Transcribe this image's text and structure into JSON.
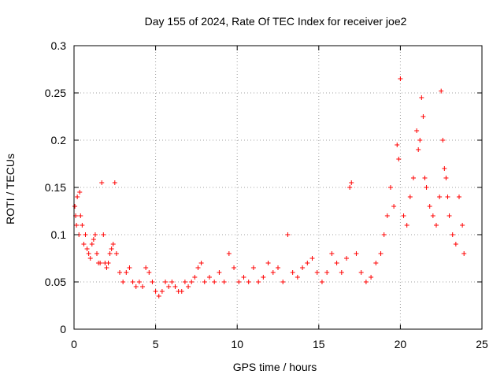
{
  "chart_data": {
    "type": "scatter",
    "title": "Day 155 of 2024, Rate Of TEC Index for receiver joe2",
    "xlabel": "GPS time / hours",
    "ylabel": "ROTI / TECUs",
    "xlim": [
      0,
      25
    ],
    "ylim": [
      0,
      0.3
    ],
    "xticks": [
      0,
      5,
      10,
      15,
      20,
      25
    ],
    "xtick_labels": [
      "0",
      "5",
      "10",
      "15",
      "20",
      "25"
    ],
    "yticks": [
      0,
      0.05,
      0.1,
      0.15,
      0.2,
      0.25,
      0.3
    ],
    "ytick_labels": [
      "0",
      "0.05",
      "0.1",
      "0.15",
      "0.2",
      "0.25",
      "0.3"
    ],
    "grid": true,
    "marker": "+",
    "marker_color": "#ff0000",
    "series": [
      {
        "x": [
          0.05,
          0.1,
          0.15,
          0.2,
          0.3,
          0.35,
          0.4,
          0.5,
          0.6,
          0.7,
          0.8,
          0.9,
          1.0,
          1.1,
          1.2,
          1.3,
          1.4,
          1.5,
          1.6,
          1.7,
          1.8,
          1.9,
          2.0,
          2.1,
          2.2,
          2.3,
          2.4,
          2.5,
          2.6,
          2.8,
          3.0,
          3.2,
          3.4,
          3.6,
          3.8,
          4.0,
          4.2,
          4.4,
          4.6,
          4.8,
          5.0,
          5.2,
          5.4,
          5.6,
          5.8,
          6.0,
          6.2,
          6.4,
          6.6,
          6.8,
          7.0,
          7.2,
          7.4,
          7.6,
          7.8,
          8.0,
          8.3,
          8.6,
          8.9,
          9.2,
          9.5,
          9.8,
          10.1,
          10.4,
          10.7,
          11.0,
          11.3,
          11.6,
          11.9,
          12.2,
          12.5,
          12.8,
          13.1,
          13.4,
          13.7,
          14.0,
          14.3,
          14.6,
          14.9,
          15.2,
          15.5,
          15.8,
          16.1,
          16.4,
          16.7,
          16.9,
          17.0,
          17.3,
          17.6,
          17.9,
          18.2,
          18.5,
          18.8,
          19.0,
          19.2,
          19.4,
          19.6,
          19.8,
          19.9,
          20.0,
          20.2,
          20.4,
          20.6,
          20.8,
          21.0,
          21.1,
          21.2,
          21.3,
          21.4,
          21.5,
          21.6,
          21.8,
          22.0,
          22.2,
          22.4,
          22.5,
          22.6,
          22.7,
          22.8,
          22.9,
          23.0,
          23.2,
          23.4,
          23.6,
          23.8,
          23.9
        ],
        "y": [
          0.13,
          0.12,
          0.11,
          0.14,
          0.1,
          0.145,
          0.12,
          0.11,
          0.09,
          0.1,
          0.085,
          0.08,
          0.075,
          0.09,
          0.095,
          0.1,
          0.08,
          0.07,
          0.07,
          0.155,
          0.1,
          0.07,
          0.065,
          0.07,
          0.08,
          0.085,
          0.09,
          0.155,
          0.08,
          0.06,
          0.05,
          0.06,
          0.065,
          0.05,
          0.045,
          0.05,
          0.045,
          0.065,
          0.06,
          0.05,
          0.04,
          0.035,
          0.04,
          0.05,
          0.045,
          0.05,
          0.045,
          0.04,
          0.04,
          0.05,
          0.045,
          0.05,
          0.055,
          0.065,
          0.07,
          0.05,
          0.055,
          0.05,
          0.06,
          0.05,
          0.08,
          0.065,
          0.05,
          0.055,
          0.05,
          0.065,
          0.05,
          0.055,
          0.07,
          0.06,
          0.065,
          0.05,
          0.1,
          0.06,
          0.055,
          0.065,
          0.07,
          0.075,
          0.06,
          0.05,
          0.06,
          0.08,
          0.07,
          0.06,
          0.075,
          0.15,
          0.155,
          0.08,
          0.06,
          0.05,
          0.055,
          0.07,
          0.08,
          0.1,
          0.12,
          0.15,
          0.13,
          0.195,
          0.18,
          0.265,
          0.12,
          0.11,
          0.14,
          0.16,
          0.21,
          0.19,
          0.2,
          0.245,
          0.225,
          0.16,
          0.15,
          0.13,
          0.12,
          0.11,
          0.14,
          0.252,
          0.2,
          0.17,
          0.16,
          0.14,
          0.12,
          0.1,
          0.09,
          0.14,
          0.11,
          0.08
        ]
      }
    ]
  }
}
